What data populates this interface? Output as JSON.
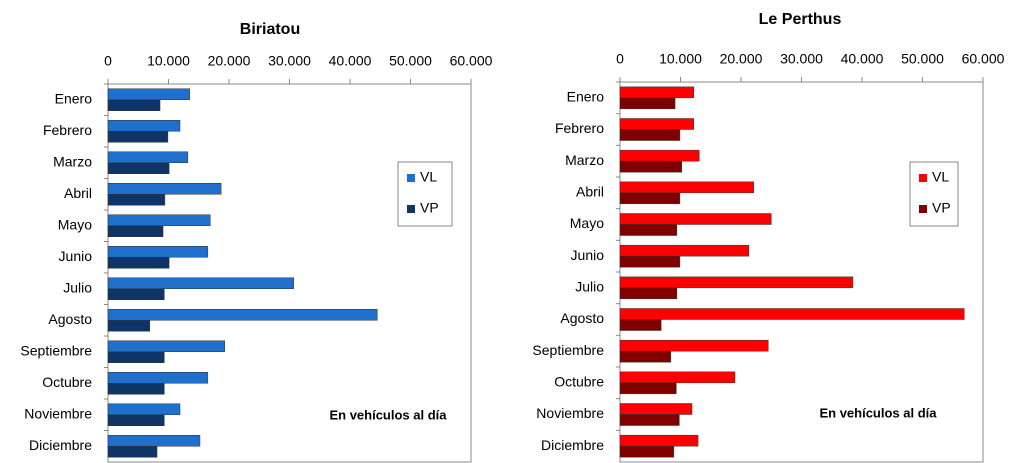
{
  "chart_data": [
    {
      "type": "bar",
      "orientation": "horizontal",
      "title": "Biriatou",
      "categories": [
        "Enero",
        "Febrero",
        "Marzo",
        "Abril",
        "Mayo",
        "Junio",
        "Julio",
        "Agosto",
        "Septiembre",
        "Octubre",
        "Noviembre",
        "Diciembre"
      ],
      "series": [
        {
          "name": "VL",
          "color": "#1f6fcc",
          "values": [
            13500,
            11900,
            13200,
            18700,
            16900,
            16500,
            30700,
            44500,
            19300,
            16500,
            11900,
            15200
          ]
        },
        {
          "name": "VP",
          "color": "#0f3566",
          "values": [
            8600,
            9900,
            10100,
            9400,
            9100,
            10100,
            9300,
            6900,
            9300,
            9300,
            9300,
            8100
          ]
        }
      ],
      "xlim": [
        0,
        60000
      ],
      "xticks": [
        0,
        {
          "value": 10000,
          "label": "10.000"
        },
        {
          "value": 20000,
          "label": "20.000"
        },
        {
          "value": 30000,
          "label": "30.000"
        },
        {
          "value": 40000,
          "label": "40.000"
        },
        {
          "value": 50000,
          "label": "50.000"
        },
        {
          "value": 60000,
          "label": "60.000"
        }
      ],
      "annotation": "En vehículos al día",
      "legend": "right"
    },
    {
      "type": "bar",
      "orientation": "horizontal",
      "title": "Le Perthus",
      "categories": [
        "Enero",
        "Febrero",
        "Marzo",
        "Abril",
        "Mayo",
        "Junio",
        "Julio",
        "Agosto",
        "Septiembre",
        "Octubre",
        "Noviembre",
        "Diciembre"
      ],
      "series": [
        {
          "name": "VL",
          "color": "#ff0000",
          "values": [
            12200,
            12200,
            13100,
            22100,
            25000,
            21300,
            38500,
            56900,
            24500,
            19000,
            11900,
            12900
          ]
        },
        {
          "name": "VP",
          "color": "#800000",
          "values": [
            9100,
            9900,
            10200,
            9900,
            9400,
            9900,
            9400,
            6800,
            8400,
            9300,
            9800,
            8900
          ]
        }
      ],
      "xlim": [
        0,
        60000
      ],
      "xticks": [
        0,
        {
          "value": 10000,
          "label": "10.000"
        },
        {
          "value": 20000,
          "label": "20.000"
        },
        {
          "value": 30000,
          "label": "30.000"
        },
        {
          "value": 40000,
          "label": "40.000"
        },
        {
          "value": 50000,
          "label": "50.000"
        },
        {
          "value": 60000,
          "label": "60.000"
        }
      ],
      "annotation": "En vehículos al día",
      "legend": "right"
    }
  ]
}
